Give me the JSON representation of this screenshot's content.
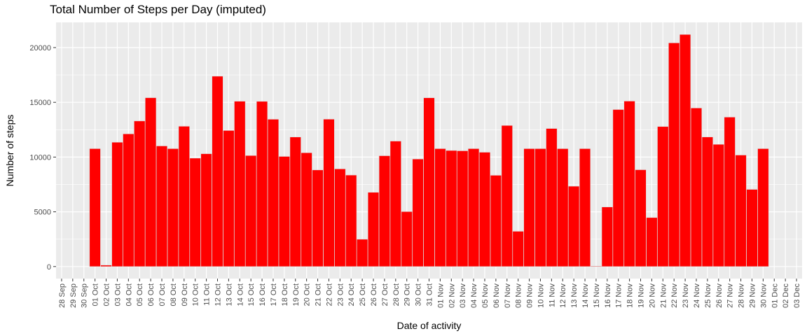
{
  "chart_data": {
    "type": "bar",
    "title": "Total Number of Steps per Day (imputed)",
    "xlabel": "Date of activity",
    "ylabel": "Number of steps",
    "ylim": [
      -1100,
      22300
    ],
    "yticks": [
      0,
      5000,
      10000,
      15000,
      20000
    ],
    "grid": true,
    "bar_color": "#ff0000",
    "panel_color": "#ebebeb",
    "categories": [
      "28 Sep",
      "29 Sep",
      "30 Sep",
      "01 Oct",
      "02 Oct",
      "03 Oct",
      "04 Oct",
      "05 Oct",
      "06 Oct",
      "07 Oct",
      "08 Oct",
      "09 Oct",
      "10 Oct",
      "11 Oct",
      "12 Oct",
      "13 Oct",
      "14 Oct",
      "15 Oct",
      "16 Oct",
      "17 Oct",
      "18 Oct",
      "19 Oct",
      "20 Oct",
      "21 Oct",
      "22 Oct",
      "23 Oct",
      "24 Oct",
      "25 Oct",
      "26 Oct",
      "27 Oct",
      "28 Oct",
      "29 Oct",
      "30 Oct",
      "31 Oct",
      "01 Nov",
      "02 Nov",
      "03 Nov",
      "04 Nov",
      "05 Nov",
      "06 Nov",
      "07 Nov",
      "08 Nov",
      "09 Nov",
      "10 Nov",
      "11 Nov",
      "12 Nov",
      "13 Nov",
      "14 Nov",
      "15 Nov",
      "16 Nov",
      "17 Nov",
      "18 Nov",
      "19 Nov",
      "20 Nov",
      "21 Nov",
      "22 Nov",
      "23 Nov",
      "24 Nov",
      "25 Nov",
      "26 Nov",
      "27 Nov",
      "28 Nov",
      "29 Nov",
      "30 Nov",
      "01 Dec",
      "02 Dec",
      "03 Dec"
    ],
    "values": [
      null,
      null,
      null,
      10766,
      126,
      11352,
      12116,
      13294,
      15420,
      11015,
      10766,
      12811,
      9900,
      10304,
      17382,
      12426,
      15098,
      10139,
      15084,
      13452,
      10056,
      11829,
      10395,
      8821,
      13460,
      8918,
      8355,
      2492,
      6778,
      10119,
      11458,
      5018,
      9819,
      15414,
      10766,
      10600,
      10571,
      10766,
      10439,
      8334,
      12883,
      3219,
      10766,
      10766,
      12608,
      10765,
      7336,
      10766,
      41,
      5441,
      14339,
      15110,
      8841,
      4472,
      12787,
      20427,
      21194,
      14478,
      11834,
      11162,
      13646,
      10183,
      7047,
      10766,
      null,
      null,
      null
    ]
  }
}
